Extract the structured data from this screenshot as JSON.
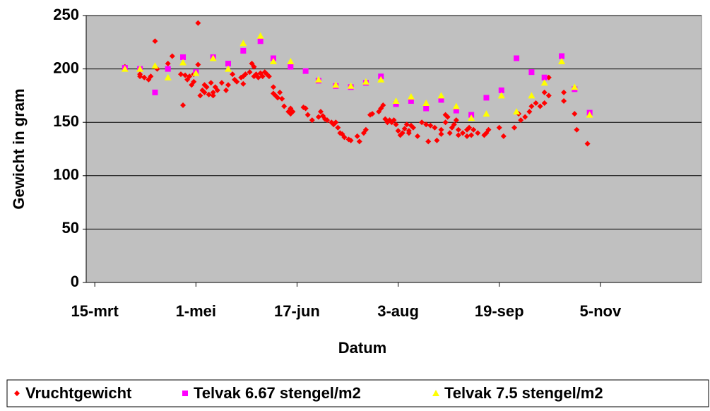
{
  "chart_data": {
    "type": "scatter",
    "x_label": "Datum",
    "y_label": "Gewicht in gram",
    "xlim": [
      70,
      356
    ],
    "ylim": [
      0,
      250
    ],
    "xticks": [
      {
        "value": 74,
        "label": "15-mrt"
      },
      {
        "value": 121,
        "label": "1-mei"
      },
      {
        "value": 168,
        "label": "17-jun"
      },
      {
        "value": 215,
        "label": "3-aug"
      },
      {
        "value": 262,
        "label": "19-sep"
      },
      {
        "value": 309,
        "label": "5-nov"
      }
    ],
    "yticks": [
      0,
      50,
      100,
      150,
      200,
      250
    ],
    "grid": true,
    "legend": "bottom",
    "series": [
      {
        "name": "Vruchtgewicht",
        "color": "#ff0000",
        "marker": "diamond",
        "x": [
          88,
          95,
          95,
          97,
          99,
          100,
          102,
          103,
          108,
          110,
          114,
          115,
          116,
          117,
          118,
          119,
          120,
          120,
          122,
          122,
          123,
          124,
          125,
          125,
          126,
          127,
          128,
          129,
          129,
          130,
          131,
          133,
          135,
          136,
          138,
          139,
          140,
          142,
          143,
          143,
          144,
          146,
          147,
          148,
          148,
          149,
          150,
          151,
          152,
          153,
          154,
          155,
          157,
          157,
          158,
          159,
          160,
          161,
          162,
          164,
          165,
          165,
          166,
          171,
          172,
          173,
          175,
          178,
          179,
          180,
          181,
          182,
          184,
          185,
          186,
          187,
          188,
          189,
          190,
          192,
          193,
          196,
          197,
          199,
          200,
          202,
          203,
          206,
          207,
          208,
          209,
          210,
          211,
          212,
          213,
          214,
          215,
          216,
          217,
          218,
          219,
          220,
          220,
          221,
          222,
          224,
          226,
          228,
          229,
          230,
          232,
          233,
          235,
          235,
          237,
          237,
          238,
          239,
          240,
          241,
          242,
          243,
          243,
          245,
          247,
          247,
          248,
          249,
          250,
          252,
          255,
          256,
          257,
          262,
          264,
          269,
          271,
          272,
          274,
          276,
          277,
          279,
          281,
          283,
          283,
          285,
          285,
          292,
          292,
          297,
          298,
          303
        ],
        "values": [
          202,
          193,
          195,
          192,
          190,
          193,
          226,
          200,
          205,
          212,
          195,
          166,
          194,
          190,
          193,
          185,
          188,
          195,
          243,
          204,
          175,
          180,
          178,
          185,
          183,
          176,
          187,
          178,
          175,
          183,
          180,
          187,
          180,
          185,
          195,
          190,
          188,
          192,
          193,
          186,
          195,
          197,
          205,
          202,
          193,
          195,
          192,
          196,
          193,
          197,
          195,
          193,
          183,
          177,
          175,
          173,
          178,
          172,
          165,
          160,
          163,
          158,
          160,
          164,
          163,
          157,
          152,
          155,
          160,
          156,
          153,
          152,
          150,
          148,
          150,
          145,
          140,
          139,
          136,
          134,
          133,
          137,
          132,
          140,
          143,
          157,
          158,
          160,
          163,
          166,
          153,
          150,
          152,
          150,
          152,
          148,
          142,
          138,
          140,
          144,
          148,
          140,
          142,
          147,
          145,
          137,
          150,
          148,
          132,
          147,
          145,
          133,
          139,
          143,
          150,
          157,
          155,
          140,
          145,
          148,
          152,
          143,
          138,
          140,
          143,
          137,
          145,
          138,
          143,
          140,
          138,
          140,
          143,
          145,
          137,
          145,
          158,
          152,
          155,
          160,
          165,
          168,
          165,
          168,
          178,
          175,
          192,
          178,
          170,
          158,
          143,
          130
        ]
      },
      {
        "name": "Telvak 6.67 stengel/m2",
        "color": "#ff00ff",
        "marker": "square",
        "x": [
          88,
          95,
          102,
          108,
          115,
          121,
          129,
          136,
          143,
          151,
          157,
          165,
          172,
          178,
          186,
          193,
          200,
          207,
          214,
          221,
          228,
          235,
          242,
          249,
          256,
          263,
          270,
          277,
          283,
          291,
          297,
          304
        ],
        "values": [
          201,
          200,
          178,
          200,
          211,
          197,
          211,
          205,
          217,
          226,
          210,
          202,
          198,
          189,
          184,
          183,
          187,
          193,
          167,
          170,
          163,
          171,
          161,
          157,
          173,
          180,
          210,
          197,
          192,
          212,
          181,
          159
        ]
      },
      {
        "name": "Telvak 7.5 stengel/m2",
        "color": "#ffff00",
        "marker": "triangle",
        "x": [
          88,
          95,
          102,
          108,
          115,
          121,
          129,
          136,
          143,
          151,
          157,
          165,
          178,
          186,
          193,
          200,
          207,
          214,
          221,
          228,
          235,
          242,
          249,
          256,
          263,
          270,
          277,
          283,
          291,
          297,
          304
        ],
        "values": [
          200,
          200,
          203,
          192,
          206,
          196,
          210,
          200,
          224,
          231,
          207,
          207,
          190,
          185,
          184,
          188,
          190,
          170,
          174,
          168,
          175,
          165,
          154,
          158,
          175,
          160,
          175,
          187,
          207,
          183,
          157
        ]
      }
    ]
  }
}
